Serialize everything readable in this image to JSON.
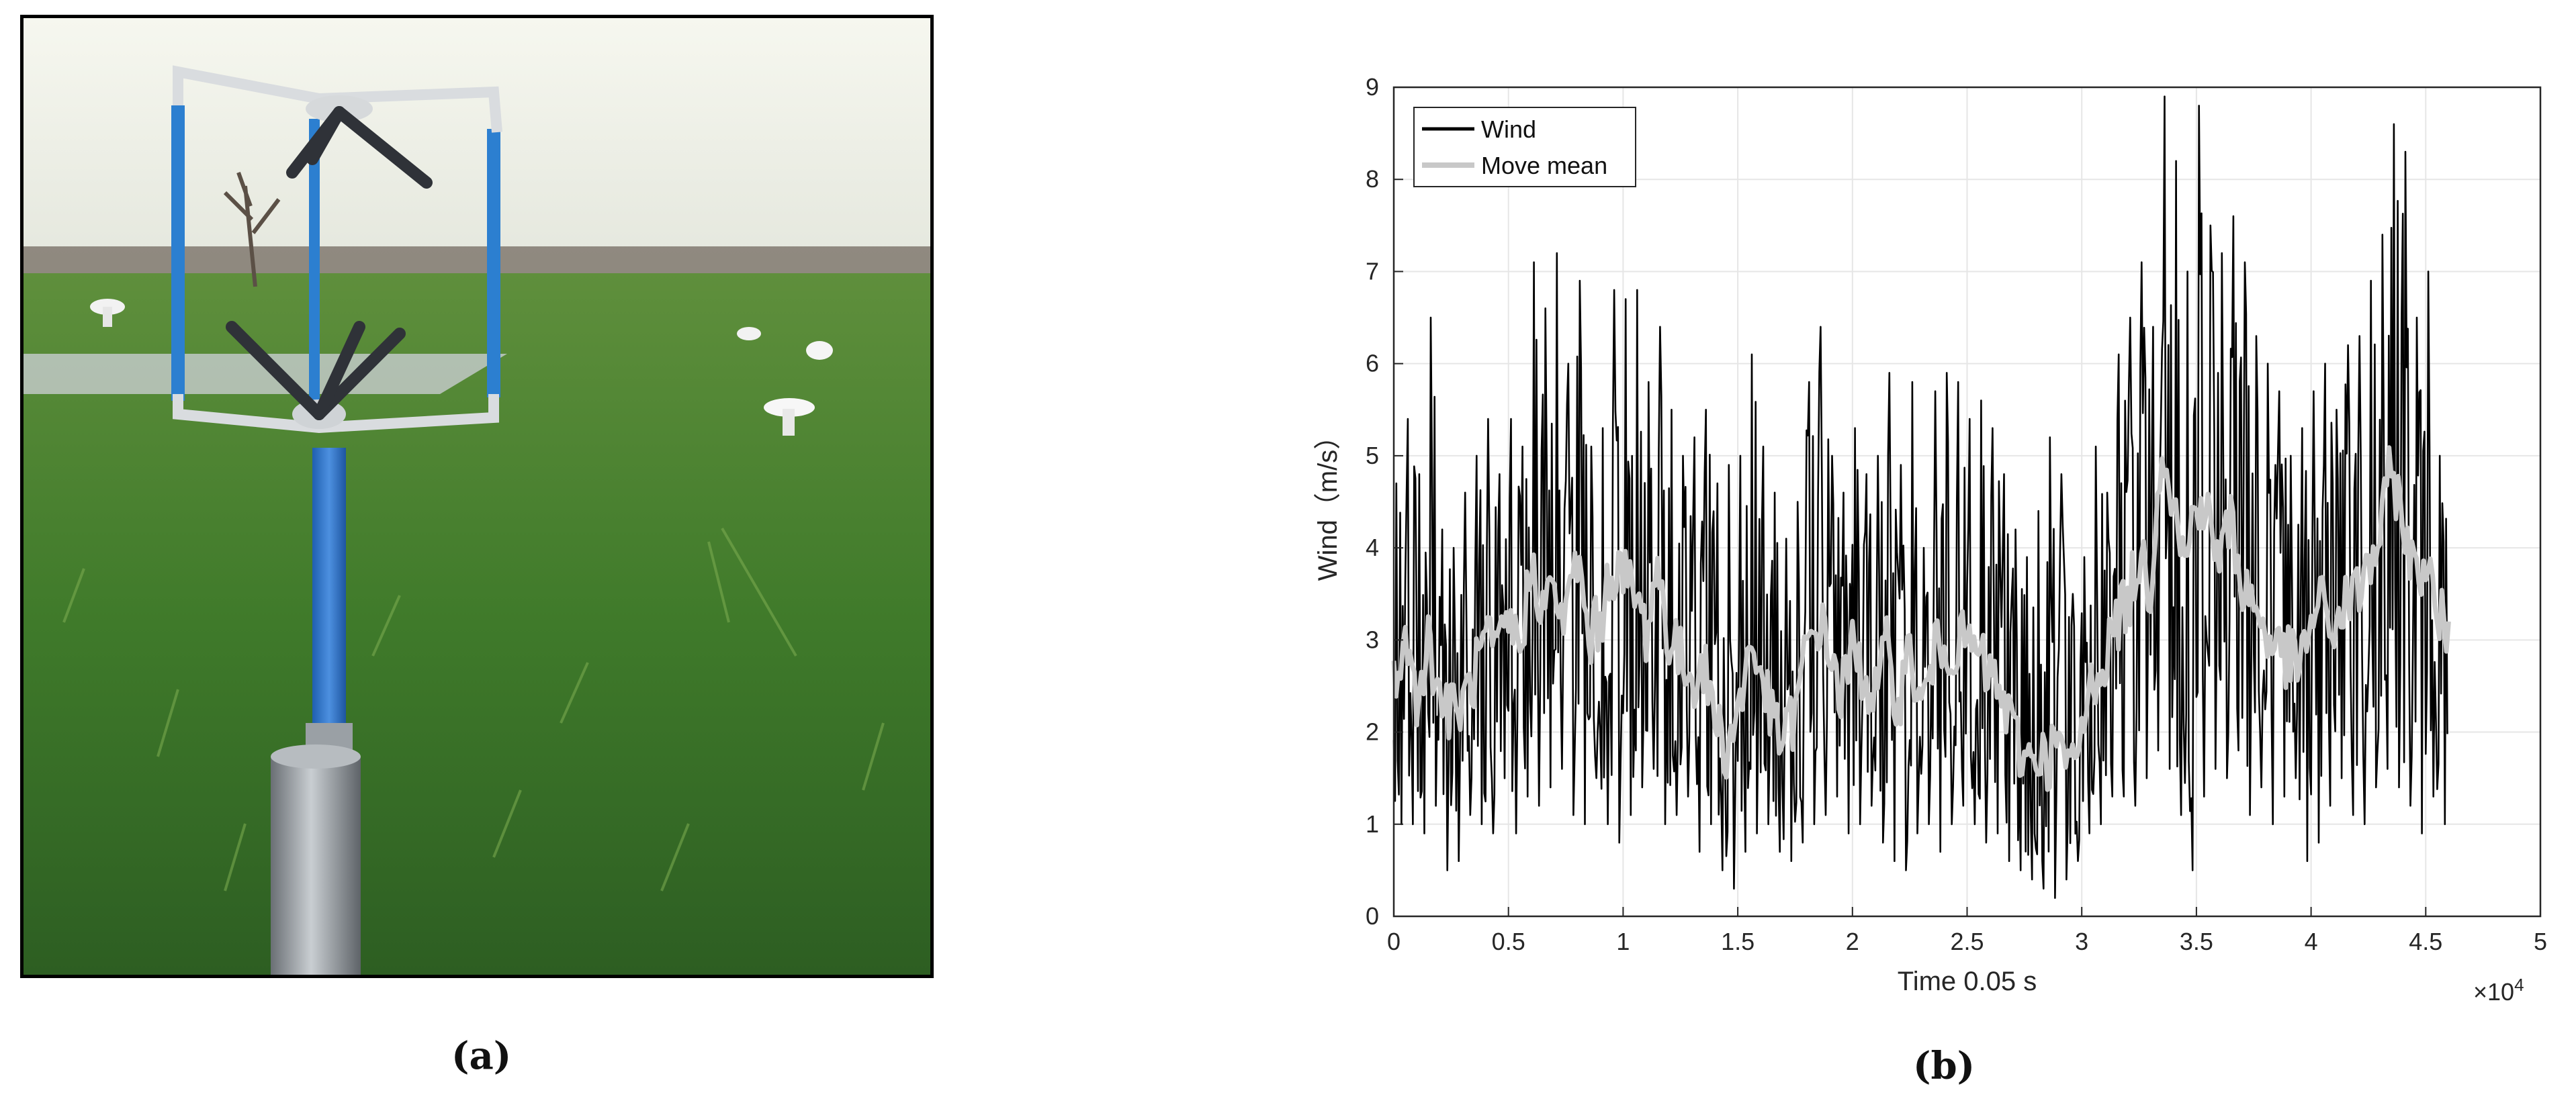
{
  "panel_a": {
    "caption": "(a)",
    "image": "photo of a 3D sonic anemometer on a mast in a grassy field"
  },
  "panel_b": {
    "caption": "(b)"
  },
  "chart_data": {
    "type": "line",
    "xlabel": "Time 0.05 s",
    "ylabel": "Wind（m/s）",
    "x_multiplier_label": "×10^4",
    "xlim": [
      0,
      5
    ],
    "ylim": [
      0,
      9
    ],
    "x_ticks": [
      "0",
      "0.5",
      "1",
      "1.5",
      "2",
      "2.5",
      "3",
      "3.5",
      "4",
      "4.5",
      "5"
    ],
    "y_ticks": [
      "0",
      "1",
      "2",
      "3",
      "4",
      "5",
      "6",
      "7",
      "8",
      "9"
    ],
    "grid": true,
    "legend_position": "top-left",
    "colors": {
      "wind": "#000000",
      "move_mean": "#c8c8c8"
    },
    "series": [
      {
        "name": "Wind",
        "note": "raw 20 Hz wind speed, envelope sampled every 0.05 x10^4 steps (min,max per bin)",
        "x": [
          0,
          0.05,
          0.1,
          0.15,
          0.2,
          0.25,
          0.3,
          0.35,
          0.4,
          0.45,
          0.5,
          0.55,
          0.6,
          0.65,
          0.7,
          0.75,
          0.8,
          0.85,
          0.9,
          0.95,
          1.0,
          1.05,
          1.1,
          1.15,
          1.2,
          1.25,
          1.3,
          1.35,
          1.4,
          1.45,
          1.5,
          1.55,
          1.6,
          1.65,
          1.7,
          1.75,
          1.8,
          1.85,
          1.9,
          1.95,
          2.0,
          2.05,
          2.1,
          2.15,
          2.2,
          2.25,
          2.3,
          2.35,
          2.4,
          2.45,
          2.5,
          2.55,
          2.6,
          2.65,
          2.7,
          2.75,
          2.8,
          2.85,
          2.9,
          2.95,
          3.0,
          3.05,
          3.1,
          3.15,
          3.2,
          3.25,
          3.3,
          3.35,
          3.4,
          3.45,
          3.5,
          3.55,
          3.6,
          3.65,
          3.7,
          3.75,
          3.8,
          3.85,
          3.9,
          3.95,
          4.0,
          4.05,
          4.1,
          4.15,
          4.2,
          4.25,
          4.3,
          4.35,
          4.4,
          4.45,
          4.5,
          4.55,
          4.6
        ],
        "low": [
          1.0,
          1.0,
          0.9,
          1.2,
          0.5,
          0.6,
          1.1,
          1.0,
          0.9,
          1.5,
          0.9,
          1.3,
          1.2,
          1.4,
          1.6,
          1.1,
          1.0,
          1.5,
          1.0,
          0.8,
          1.1,
          1.4,
          1.6,
          1.0,
          1.1,
          1.3,
          0.7,
          1.0,
          0.5,
          0.3,
          0.7,
          0.9,
          1.0,
          0.7,
          0.6,
          0.8,
          1.0,
          1.1,
          1.3,
          0.9,
          1.0,
          1.2,
          0.8,
          0.6,
          0.5,
          0.9,
          1.0,
          0.7,
          1.0,
          1.2,
          1.0,
          0.8,
          0.9,
          0.6,
          0.5,
          0.4,
          0.3,
          0.2,
          0.4,
          0.6,
          0.9,
          1.0,
          1.3,
          1.3,
          1.2,
          1.5,
          1.8,
          1.6,
          1.1,
          0.5,
          1.3,
          1.6,
          1.5,
          1.8,
          1.1,
          1.4,
          1.0,
          1.3,
          1.5,
          0.6,
          0.8,
          1.2,
          1.5,
          1.1,
          1.0,
          1.4,
          1.6,
          1.4,
          1.2,
          0.9,
          1.3,
          1.0,
          2.2
        ],
        "high": [
          4.7,
          5.4,
          4.8,
          6.5,
          4.2,
          4.0,
          4.6,
          5.0,
          5.4,
          4.8,
          5.4,
          5.1,
          7.1,
          6.6,
          7.2,
          6.0,
          6.9,
          5.1,
          5.3,
          6.8,
          6.7,
          6.8,
          5.8,
          6.4,
          5.5,
          5.0,
          5.2,
          5.5,
          4.7,
          4.9,
          5.0,
          6.1,
          5.1,
          4.6,
          4.1,
          4.5,
          5.8,
          6.4,
          5.0,
          4.6,
          5.3,
          4.8,
          5.0,
          5.9,
          4.9,
          5.8,
          4.0,
          5.7,
          5.9,
          5.8,
          5.4,
          5.6,
          5.3,
          4.8,
          4.2,
          3.9,
          4.4,
          5.2,
          4.8,
          3.5,
          3.9,
          5.1,
          4.6,
          6.1,
          6.5,
          7.1,
          6.4,
          8.9,
          8.2,
          7.0,
          8.8,
          7.5,
          7.2,
          7.6,
          7.1,
          6.3,
          6.0,
          5.7,
          5.0,
          5.3,
          5.7,
          6.0,
          5.5,
          6.2,
          6.3,
          6.9,
          7.4,
          8.6,
          8.3,
          6.5,
          7.0,
          5.0,
          4.6
        ]
      },
      {
        "name": "Move mean",
        "x": [
          0,
          0.05,
          0.1,
          0.15,
          0.2,
          0.25,
          0.3,
          0.35,
          0.4,
          0.45,
          0.5,
          0.55,
          0.6,
          0.65,
          0.7,
          0.75,
          0.8,
          0.85,
          0.9,
          0.95,
          1.0,
          1.05,
          1.1,
          1.15,
          1.2,
          1.25,
          1.3,
          1.35,
          1.4,
          1.45,
          1.5,
          1.55,
          1.6,
          1.65,
          1.7,
          1.75,
          1.8,
          1.85,
          1.9,
          1.95,
          2.0,
          2.05,
          2.1,
          2.15,
          2.2,
          2.25,
          2.3,
          2.35,
          2.4,
          2.45,
          2.5,
          2.55,
          2.6,
          2.65,
          2.7,
          2.75,
          2.8,
          2.85,
          2.9,
          2.95,
          3.0,
          3.05,
          3.1,
          3.15,
          3.2,
          3.25,
          3.3,
          3.35,
          3.4,
          3.45,
          3.5,
          3.55,
          3.6,
          3.65,
          3.7,
          3.75,
          3.8,
          3.85,
          3.9,
          3.95,
          4.0,
          4.05,
          4.1,
          4.15,
          4.2,
          4.25,
          4.3,
          4.35,
          4.4,
          4.45,
          4.5,
          4.55,
          4.6
        ],
        "y": [
          2.6,
          3.0,
          2.4,
          3.0,
          2.4,
          2.2,
          2.3,
          2.6,
          3.0,
          2.8,
          3.2,
          2.9,
          3.8,
          3.4,
          3.5,
          3.2,
          3.9,
          3.0,
          3.2,
          3.8,
          3.7,
          3.5,
          3.1,
          3.8,
          3.0,
          2.8,
          2.6,
          2.7,
          2.2,
          1.8,
          2.2,
          2.9,
          2.7,
          2.1,
          1.9,
          2.2,
          2.9,
          3.2,
          2.9,
          2.4,
          2.9,
          2.6,
          2.4,
          2.9,
          2.3,
          2.9,
          2.2,
          2.8,
          3.0,
          2.9,
          3.0,
          2.8,
          2.6,
          2.4,
          2.0,
          1.7,
          1.8,
          1.7,
          1.9,
          1.5,
          2.0,
          2.6,
          2.8,
          3.2,
          3.4,
          3.9,
          3.6,
          5.2,
          4.5,
          3.8,
          4.6,
          4.3,
          3.9,
          4.3,
          3.6,
          3.4,
          3.1,
          2.9,
          2.8,
          2.7,
          3.2,
          3.4,
          3.1,
          3.4,
          3.5,
          3.8,
          4.1,
          4.9,
          4.3,
          3.7,
          3.9,
          3.2,
          3.2
        ]
      }
    ]
  }
}
